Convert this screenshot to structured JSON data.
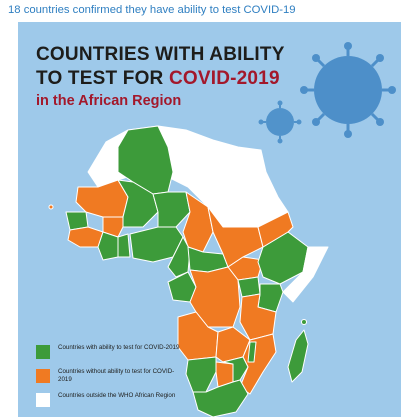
{
  "header": {
    "text": "18 countries confirmed they have ability to test COVID-19"
  },
  "infographic": {
    "title_line1": "COUNTRIES WITH ABILITY",
    "title_line2_prefix": "TO TEST FOR ",
    "title_line2_highlight": "COVID-2019",
    "subtitle": "in the African Region"
  },
  "legend": [
    {
      "label": "Countries with ability to test for COVID-2019",
      "color": "#3d9b3a"
    },
    {
      "label": "Countries without ability to test for COVID-2019",
      "color": "#f07a22"
    },
    {
      "label": "Countries outside the WHO African Region",
      "color": "#ffffff"
    }
  ],
  "colors": {
    "background": "#9ec9ea",
    "able": "#3d9b3a",
    "unable": "#f07a22",
    "outside": "#ffffff",
    "virus": "#3f86c4",
    "title": "#1d1d1b",
    "accent": "#a3182b"
  }
}
